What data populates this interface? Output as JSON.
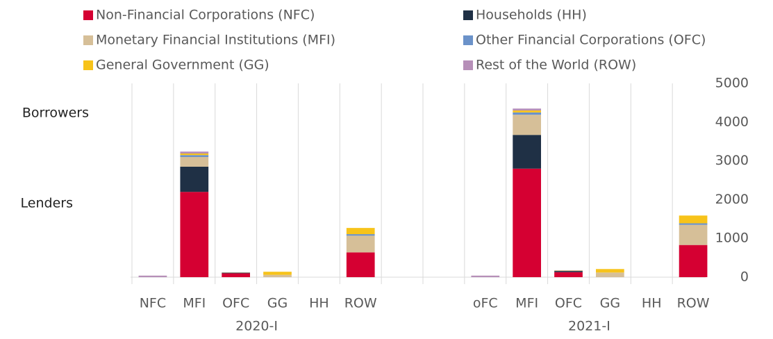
{
  "chart_data": {
    "type": "stacked_bar",
    "annotations": [
      "Borrowers",
      "Lenders"
    ],
    "group_labels": [
      "2020-I",
      "2021-I"
    ],
    "categories": [
      "NFC",
      "MFI",
      "OFC",
      "GG",
      "HH",
      "ROW",
      null,
      null,
      "oFC",
      "MFI",
      "OFC",
      "GG",
      "HH",
      "ROW"
    ],
    "series": [
      {
        "name": "Non-Financial Corporations (NFC)",
        "color": "#d50032",
        "values": [
          0,
          2200,
          100,
          0,
          0,
          640,
          null,
          null,
          0,
          2800,
          130,
          0,
          0,
          830
        ]
      },
      {
        "name": "Households (HH)",
        "color": "#1f3045",
        "values": [
          0,
          650,
          15,
          0,
          0,
          0,
          null,
          null,
          0,
          870,
          30,
          0,
          0,
          0
        ]
      },
      {
        "name": "Monetary Financial Institutions (MFI)",
        "color": "#d6bf98",
        "values": [
          0,
          250,
          10,
          60,
          0,
          430,
          null,
          null,
          0,
          520,
          20,
          120,
          0,
          520
        ]
      },
      {
        "name": "Other Financial Corporations (OFC)",
        "color": "#6b92c9",
        "values": [
          0,
          50,
          0,
          0,
          0,
          40,
          null,
          null,
          0,
          60,
          0,
          0,
          0,
          40
        ]
      },
      {
        "name": "General Government (GG)",
        "color": "#f7c31a",
        "values": [
          0,
          40,
          0,
          80,
          0,
          160,
          null,
          null,
          0,
          50,
          0,
          90,
          0,
          200
        ]
      },
      {
        "name": "Rest of the World (ROW)",
        "color": "#b68fb8",
        "values": [
          40,
          50,
          0,
          0,
          0,
          0,
          null,
          null,
          40,
          50,
          0,
          0,
          0,
          0
        ]
      }
    ],
    "ylim": [
      0,
      5000
    ],
    "yticks": [
      0,
      1000,
      2000,
      3000,
      4000,
      5000
    ],
    "y_axis_side": "right",
    "grid": false
  }
}
